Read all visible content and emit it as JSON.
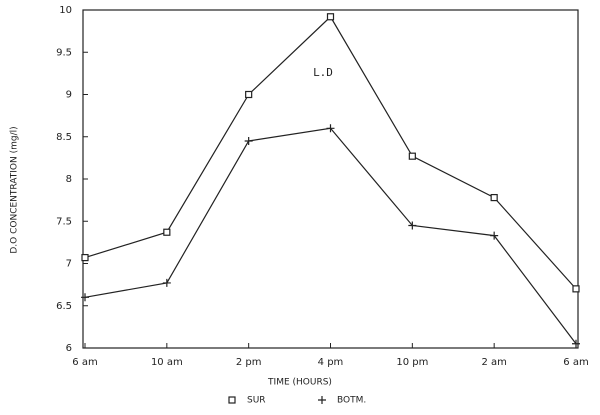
{
  "chart_data": {
    "type": "line",
    "x_label": "TIME (HOURS)",
    "y_label": "D.O CONCENTRATION (mg/l)",
    "annotation": "L.D",
    "categories": [
      "6 am",
      "10 am",
      "2 pm",
      "4 pm",
      "10 pm",
      "2 am",
      "6 am"
    ],
    "series": [
      {
        "name": "SUR",
        "color": "#222222",
        "marker": "square",
        "values": [
          7.07,
          7.37,
          9.0,
          9.92,
          8.27,
          7.78,
          6.7
        ]
      },
      {
        "name": "BOTM.",
        "color": "#222222",
        "marker": "plus",
        "values": [
          6.6,
          6.77,
          8.45,
          8.6,
          7.45,
          7.33,
          6.05
        ]
      }
    ],
    "ylim": [
      6,
      10
    ],
    "yticks": [
      6,
      6.5,
      7,
      7.5,
      8,
      8.5,
      9,
      9.5,
      10
    ],
    "grid": false
  }
}
